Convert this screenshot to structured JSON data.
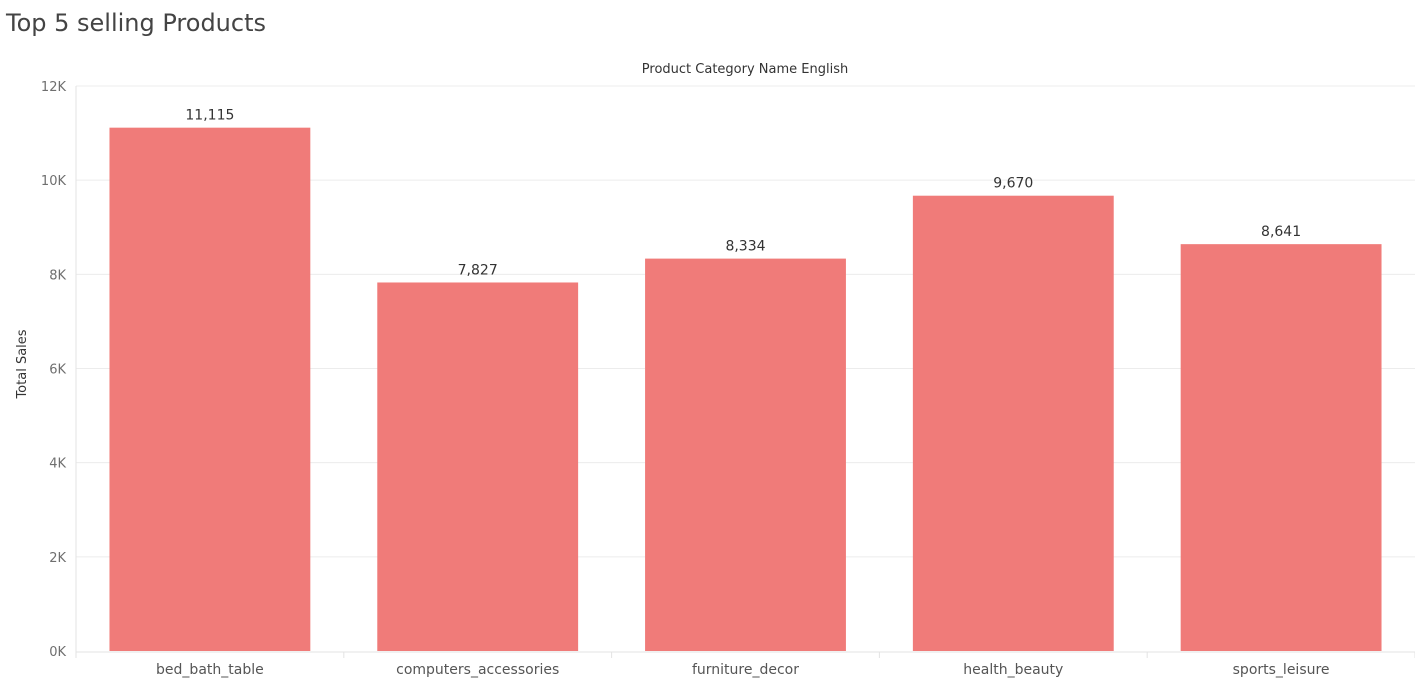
{
  "chart_data": {
    "type": "bar",
    "title": "Top 5 selling Products",
    "xlabel": "Product Category Name English",
    "ylabel": "Total Sales",
    "categories": [
      "bed_bath_table",
      "computers_accessories",
      "furniture_decor",
      "health_beauty",
      "sports_leisure"
    ],
    "values": [
      11115,
      7827,
      8334,
      9670,
      8641
    ],
    "data_labels": [
      "11,115",
      "7,827",
      "8,334",
      "9,670",
      "8,641"
    ],
    "ylim": [
      0,
      12000
    ],
    "yticks": [
      0,
      2000,
      4000,
      6000,
      8000,
      10000,
      12000
    ],
    "ytick_labels": [
      "0K",
      "2K",
      "4K",
      "6K",
      "8K",
      "10K",
      "12K"
    ],
    "bar_color": "#f07b79",
    "grid": true,
    "xlabel_position": "top",
    "legend": "none"
  }
}
